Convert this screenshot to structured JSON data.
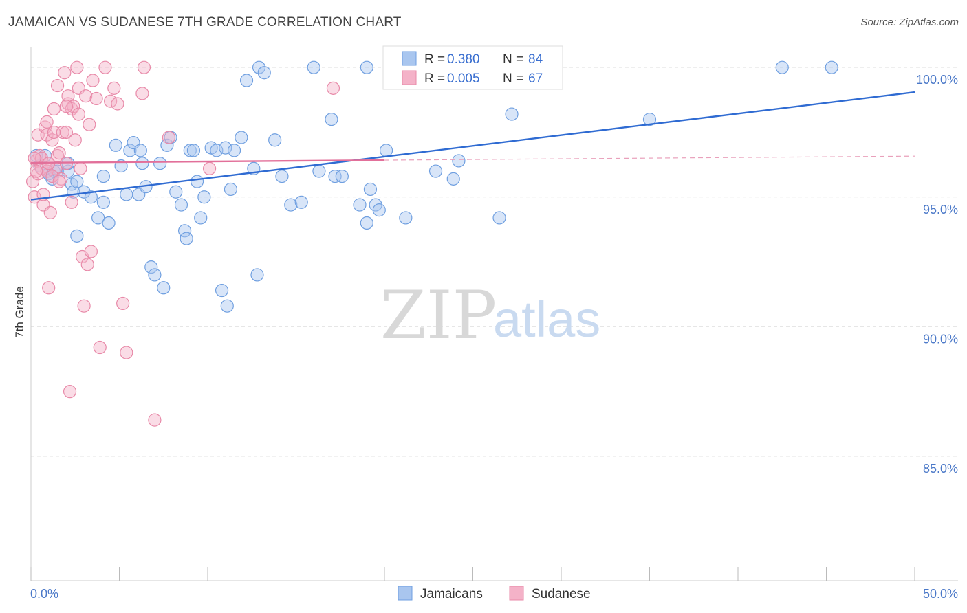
{
  "title": "JAMAICAN VS SUDANESE 7TH GRADE CORRELATION CHART",
  "source": "Source: ZipAtlas.com",
  "watermark": {
    "zip": "ZIP",
    "atlas": "atlas"
  },
  "legend_top": [
    {
      "r_label": "R =",
      "r_value": "0.380",
      "n_label": "N =",
      "n_value": "84",
      "color": "#a9c6ef"
    },
    {
      "r_label": "R =",
      "r_value": "0.005",
      "n_label": "N =",
      "n_value": "67",
      "color": "#f4b2c8"
    }
  ],
  "legend_bottom": [
    {
      "label": "Jamaicans",
      "color": "#a9c6ef"
    },
    {
      "label": "Sudanese",
      "color": "#f4b2c8"
    }
  ],
  "chart_data": {
    "type": "scatter",
    "title": "JAMAICAN VS SUDANESE 7TH GRADE CORRELATION CHART",
    "xlabel": "",
    "ylabel": "7th Grade",
    "xlim": [
      0,
      50
    ],
    "ylim": [
      80.2,
      100.8
    ],
    "x_tick_labels": [
      "0.0%",
      "50.0%"
    ],
    "y_ticks": [
      100,
      95,
      90,
      85
    ],
    "y_tick_labels": [
      "100.0%",
      "95.0%",
      "90.0%",
      "85.0%"
    ],
    "grid": true,
    "legend_position": "top-center",
    "series": [
      {
        "name": "Jamaicans",
        "color": "#6f9fe0",
        "fill": "#a9c6ef",
        "trend": {
          "x": [
            0,
            50
          ],
          "y": [
            94.9,
            99.05
          ]
        },
        "points": [
          [
            0.3,
            96.6
          ],
          [
            0.5,
            96.2
          ],
          [
            0.8,
            96.6
          ],
          [
            0.9,
            96.0
          ],
          [
            1.0,
            95.9
          ],
          [
            1.2,
            95.7
          ],
          [
            1.3,
            96.0
          ],
          [
            1.5,
            96.0
          ],
          [
            2.1,
            96.0
          ],
          [
            2.3,
            95.5
          ],
          [
            2.4,
            95.2
          ],
          [
            2.6,
            95.6
          ],
          [
            3.0,
            95.2
          ],
          [
            3.4,
            95.0
          ],
          [
            4.1,
            95.8
          ],
          [
            4.1,
            94.8
          ],
          [
            4.8,
            97.0
          ],
          [
            5.1,
            96.2
          ],
          [
            5.4,
            95.1
          ],
          [
            5.6,
            96.8
          ],
          [
            5.8,
            97.1
          ],
          [
            6.1,
            95.1
          ],
          [
            6.3,
            96.3
          ],
          [
            6.5,
            95.4
          ],
          [
            2.6,
            93.5
          ],
          [
            3.8,
            94.2
          ],
          [
            4.4,
            94.0
          ],
          [
            7.3,
            96.3
          ],
          [
            7.7,
            97.0
          ],
          [
            7.9,
            97.3
          ],
          [
            8.2,
            95.2
          ],
          [
            8.5,
            94.7
          ],
          [
            8.7,
            93.7
          ],
          [
            9.0,
            96.8
          ],
          [
            9.4,
            95.6
          ],
          [
            9.6,
            94.2
          ],
          [
            9.8,
            95.0
          ],
          [
            10.2,
            96.9
          ],
          [
            10.5,
            96.8
          ],
          [
            11.0,
            96.9
          ],
          [
            11.3,
            95.3
          ],
          [
            11.5,
            96.8
          ],
          [
            11.9,
            97.3
          ],
          [
            12.6,
            96.1
          ],
          [
            12.8,
            92.0
          ],
          [
            13.8,
            97.2
          ],
          [
            14.2,
            95.8
          ],
          [
            14.7,
            94.7
          ],
          [
            15.3,
            94.8
          ],
          [
            16.3,
            96.0
          ],
          [
            17.2,
            95.8
          ],
          [
            17.6,
            95.8
          ],
          [
            18.6,
            94.7
          ],
          [
            19.0,
            94.0
          ],
          [
            19.2,
            95.3
          ],
          [
            19.5,
            94.7
          ],
          [
            19.7,
            94.5
          ],
          [
            20.1,
            96.8
          ],
          [
            21.2,
            94.2
          ],
          [
            22.9,
            96.0
          ],
          [
            23.9,
            95.7
          ],
          [
            24.2,
            96.4
          ],
          [
            26.5,
            94.2
          ],
          [
            6.8,
            92.3
          ],
          [
            7.0,
            92.0
          ],
          [
            7.5,
            91.5
          ],
          [
            8.8,
            93.4
          ],
          [
            10.8,
            91.4
          ],
          [
            11.1,
            90.8
          ],
          [
            12.2,
            99.5
          ],
          [
            12.9,
            100.0
          ],
          [
            13.2,
            99.8
          ],
          [
            16.0,
            100.0
          ],
          [
            17.0,
            98.0
          ],
          [
            19.0,
            100.0
          ],
          [
            27.2,
            98.2
          ],
          [
            27.2,
            100.0
          ],
          [
            27.7,
            100.0
          ],
          [
            35.0,
            98.0
          ],
          [
            42.5,
            100.0
          ],
          [
            45.3,
            100.0
          ],
          [
            2.1,
            96.3
          ],
          [
            6.2,
            96.8
          ],
          [
            9.2,
            96.8
          ]
        ]
      },
      {
        "name": "Sudanese",
        "color": "#e889a8",
        "fill": "#f4b2c8",
        "trend": {
          "x": [
            0,
            50
          ],
          "y": [
            96.32,
            96.58
          ]
        },
        "trend_solid_until_x": 20,
        "points": [
          [
            0.1,
            95.6
          ],
          [
            0.2,
            95.0
          ],
          [
            0.3,
            96.4
          ],
          [
            0.4,
            95.9
          ],
          [
            0.4,
            97.4
          ],
          [
            0.6,
            96.1
          ],
          [
            0.7,
            94.7
          ],
          [
            0.7,
            95.1
          ],
          [
            0.8,
            97.7
          ],
          [
            0.9,
            97.9
          ],
          [
            0.9,
            97.4
          ],
          [
            1.0,
            96.3
          ],
          [
            1.0,
            91.5
          ],
          [
            1.1,
            94.4
          ],
          [
            1.2,
            97.2
          ],
          [
            1.3,
            97.5
          ],
          [
            1.3,
            98.4
          ],
          [
            1.4,
            96.1
          ],
          [
            1.5,
            99.3
          ],
          [
            1.5,
            96.6
          ],
          [
            1.6,
            96.7
          ],
          [
            1.7,
            95.7
          ],
          [
            1.8,
            97.5
          ],
          [
            1.9,
            99.8
          ],
          [
            2.0,
            97.5
          ],
          [
            2.0,
            96.3
          ],
          [
            2.1,
            98.6
          ],
          [
            2.1,
            98.9
          ],
          [
            2.2,
            87.5
          ],
          [
            2.3,
            94.8
          ],
          [
            2.3,
            98.4
          ],
          [
            2.4,
            98.5
          ],
          [
            2.5,
            97.2
          ],
          [
            2.6,
            100.0
          ],
          [
            2.7,
            98.2
          ],
          [
            2.7,
            99.2
          ],
          [
            2.8,
            96.1
          ],
          [
            2.9,
            92.7
          ],
          [
            3.0,
            90.8
          ],
          [
            3.1,
            98.9
          ],
          [
            3.2,
            92.4
          ],
          [
            3.3,
            97.8
          ],
          [
            3.4,
            92.9
          ],
          [
            3.5,
            99.5
          ],
          [
            3.7,
            98.8
          ],
          [
            3.9,
            89.2
          ],
          [
            4.2,
            100.0
          ],
          [
            4.5,
            98.7
          ],
          [
            4.7,
            99.2
          ],
          [
            4.9,
            98.6
          ],
          [
            5.2,
            90.9
          ],
          [
            5.4,
            89.0
          ],
          [
            6.3,
            99.0
          ],
          [
            6.4,
            100.0
          ],
          [
            7.0,
            86.4
          ],
          [
            7.8,
            97.3
          ],
          [
            10.1,
            96.1
          ],
          [
            17.1,
            99.2
          ],
          [
            0.5,
            96.6
          ],
          [
            0.9,
            96.0
          ],
          [
            1.2,
            95.8
          ],
          [
            0.3,
            96.0
          ],
          [
            0.6,
            96.5
          ],
          [
            1.6,
            95.6
          ],
          [
            2.0,
            98.5
          ],
          [
            1.0,
            96.3
          ],
          [
            0.2,
            96.5
          ]
        ]
      }
    ]
  }
}
